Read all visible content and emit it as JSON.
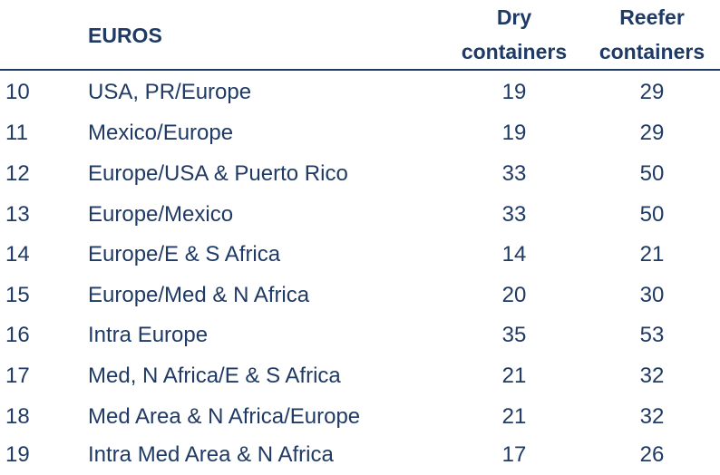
{
  "header": {
    "currency_label": "EUROS",
    "dry_label_line1": "Dry",
    "dry_label_line2": "containers",
    "reefer_label_line1": "Reefer",
    "reefer_label_line2": "containers"
  },
  "rows": [
    {
      "num": "10",
      "route": "USA, PR/Europe",
      "dry": "19",
      "reefer": "29"
    },
    {
      "num": "11",
      "route": "Mexico/Europe",
      "dry": "19",
      "reefer": "29"
    },
    {
      "num": "12",
      "route": "Europe/USA & Puerto Rico",
      "dry": "33",
      "reefer": "50"
    },
    {
      "num": "13",
      "route": "Europe/Mexico",
      "dry": "33",
      "reefer": "50"
    },
    {
      "num": "14",
      "route": "Europe/E & S Africa",
      "dry": "14",
      "reefer": "21"
    },
    {
      "num": "15",
      "route": "Europe/Med & N Africa",
      "dry": "20",
      "reefer": "30"
    },
    {
      "num": "16",
      "route": "Intra Europe",
      "dry": "35",
      "reefer": "53"
    },
    {
      "num": "17",
      "route": "Med, N Africa/E & S Africa",
      "dry": "21",
      "reefer": "32"
    },
    {
      "num": "18",
      "route": "Med Area & N Africa/Europe",
      "dry": "21",
      "reefer": "32"
    },
    {
      "num": "19",
      "route": "Intra Med Area & N Africa",
      "dry": "17",
      "reefer": "26"
    }
  ],
  "colors": {
    "text": "#1f3a64"
  }
}
